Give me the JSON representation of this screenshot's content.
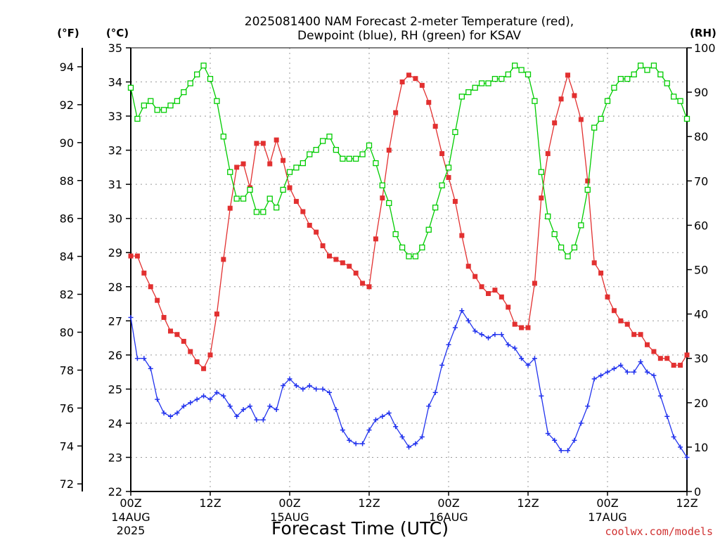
{
  "title_line1": "2025081400 NAM Forecast 2-meter Temperature (red),",
  "title_line2": "Dewpoint (blue), RH (green) for KSAV",
  "unit_left_f": "(°F)",
  "unit_left_c": "(°C)",
  "unit_right_rh": "(RH)",
  "xlabel": "Forecast Time (UTC)",
  "watermark": "coolwx.com/models",
  "colors": {
    "temp": "#e23030",
    "dew": "#2233ee",
    "rh": "#00cc00"
  },
  "chart_data": {
    "type": "line",
    "x_unit": "forecast hour from 2025-08-14 00Z",
    "x_range": [
      0,
      84
    ],
    "x_ticks": [
      {
        "x": 0,
        "label": "00Z",
        "date": "14AUG",
        "year": "2025"
      },
      {
        "x": 12,
        "label": "12Z",
        "date": "",
        "year": ""
      },
      {
        "x": 24,
        "label": "00Z",
        "date": "15AUG",
        "year": ""
      },
      {
        "x": 36,
        "label": "12Z",
        "date": "",
        "year": ""
      },
      {
        "x": 48,
        "label": "00Z",
        "date": "16AUG",
        "year": ""
      },
      {
        "x": 60,
        "label": "12Z",
        "date": "",
        "year": ""
      },
      {
        "x": 72,
        "label": "00Z",
        "date": "17AUG",
        "year": ""
      },
      {
        "x": 84,
        "label": "12Z",
        "date": "",
        "year": ""
      }
    ],
    "celsius_axis": {
      "range": [
        22,
        35
      ],
      "ticks": [
        "22",
        "23",
        "24",
        "25",
        "26",
        "27",
        "28",
        "29",
        "30",
        "31",
        "32",
        "33",
        "34",
        "35"
      ]
    },
    "fahrenheit_axis": {
      "range": [
        71.6,
        95
      ],
      "ticks": [
        "72",
        "74",
        "76",
        "78",
        "80",
        "82",
        "84",
        "86",
        "88",
        "90",
        "92",
        "94"
      ]
    },
    "rh_axis": {
      "range": [
        0,
        100
      ],
      "ticks": [
        "0",
        "10",
        "20",
        "30",
        "40",
        "50",
        "60",
        "70",
        "80",
        "90",
        "100"
      ]
    },
    "grid": true,
    "series": [
      {
        "name": "Temperature",
        "axis": "celsius",
        "points": [
          [
            0,
            28.9
          ],
          [
            1,
            28.9
          ],
          [
            2,
            28.4
          ],
          [
            3,
            28.0
          ],
          [
            4,
            27.6
          ],
          [
            5,
            27.1
          ],
          [
            6,
            26.7
          ],
          [
            7,
            26.6
          ],
          [
            8,
            26.4
          ],
          [
            9,
            26.1
          ],
          [
            10,
            25.8
          ],
          [
            11,
            25.6
          ],
          [
            12,
            26.0
          ],
          [
            13,
            27.2
          ],
          [
            14,
            28.8
          ],
          [
            15,
            30.3
          ],
          [
            16,
            31.5
          ],
          [
            17,
            31.6
          ],
          [
            18,
            30.9
          ],
          [
            19,
            32.2
          ],
          [
            20,
            32.2
          ],
          [
            21,
            31.6
          ],
          [
            22,
            32.3
          ],
          [
            23,
            31.7
          ],
          [
            24,
            30.9
          ],
          [
            25,
            30.5
          ],
          [
            26,
            30.2
          ],
          [
            27,
            29.8
          ],
          [
            28,
            29.6
          ],
          [
            29,
            29.2
          ],
          [
            30,
            28.9
          ],
          [
            31,
            28.8
          ],
          [
            32,
            28.7
          ],
          [
            33,
            28.6
          ],
          [
            34,
            28.4
          ],
          [
            35,
            28.1
          ],
          [
            36,
            28.0
          ],
          [
            37,
            29.4
          ],
          [
            38,
            30.6
          ],
          [
            39,
            32.0
          ],
          [
            40,
            33.1
          ],
          [
            41,
            34.0
          ],
          [
            42,
            34.2
          ],
          [
            43,
            34.1
          ],
          [
            44,
            33.9
          ],
          [
            45,
            33.4
          ],
          [
            46,
            32.7
          ],
          [
            47,
            31.9
          ],
          [
            48,
            31.2
          ],
          [
            49,
            30.5
          ],
          [
            50,
            29.5
          ],
          [
            51,
            28.6
          ],
          [
            52,
            28.3
          ],
          [
            53,
            28.0
          ],
          [
            54,
            27.8
          ],
          [
            55,
            27.9
          ],
          [
            56,
            27.7
          ],
          [
            57,
            27.4
          ],
          [
            58,
            26.9
          ],
          [
            59,
            26.8
          ],
          [
            60,
            26.8
          ],
          [
            61,
            28.1
          ],
          [
            62,
            30.6
          ],
          [
            63,
            31.9
          ],
          [
            64,
            32.8
          ],
          [
            65,
            33.5
          ],
          [
            66,
            34.2
          ],
          [
            67,
            33.6
          ],
          [
            68,
            32.9
          ],
          [
            69,
            31.1
          ],
          [
            70,
            28.7
          ],
          [
            71,
            28.4
          ],
          [
            72,
            27.7
          ],
          [
            73,
            27.3
          ],
          [
            74,
            27.0
          ],
          [
            75,
            26.9
          ],
          [
            76,
            26.6
          ],
          [
            77,
            26.6
          ],
          [
            78,
            26.3
          ],
          [
            79,
            26.1
          ],
          [
            80,
            25.9
          ],
          [
            81,
            25.9
          ],
          [
            82,
            25.7
          ],
          [
            83,
            25.7
          ],
          [
            84,
            26.0
          ]
        ]
      },
      {
        "name": "Dewpoint",
        "axis": "celsius",
        "points": [
          [
            0,
            27.1
          ],
          [
            1,
            25.9
          ],
          [
            2,
            25.9
          ],
          [
            3,
            25.6
          ],
          [
            4,
            24.7
          ],
          [
            5,
            24.3
          ],
          [
            6,
            24.2
          ],
          [
            7,
            24.3
          ],
          [
            8,
            24.5
          ],
          [
            9,
            24.6
          ],
          [
            10,
            24.7
          ],
          [
            11,
            24.8
          ],
          [
            12,
            24.7
          ],
          [
            13,
            24.9
          ],
          [
            14,
            24.8
          ],
          [
            15,
            24.5
          ],
          [
            16,
            24.2
          ],
          [
            17,
            24.4
          ],
          [
            18,
            24.5
          ],
          [
            19,
            24.1
          ],
          [
            20,
            24.1
          ],
          [
            21,
            24.5
          ],
          [
            22,
            24.4
          ],
          [
            23,
            25.1
          ],
          [
            24,
            25.3
          ],
          [
            25,
            25.1
          ],
          [
            26,
            25.0
          ],
          [
            27,
            25.1
          ],
          [
            28,
            25.0
          ],
          [
            29,
            25.0
          ],
          [
            30,
            24.9
          ],
          [
            31,
            24.4
          ],
          [
            32,
            23.8
          ],
          [
            33,
            23.5
          ],
          [
            34,
            23.4
          ],
          [
            35,
            23.4
          ],
          [
            36,
            23.8
          ],
          [
            37,
            24.1
          ],
          [
            38,
            24.2
          ],
          [
            39,
            24.3
          ],
          [
            40,
            23.9
          ],
          [
            41,
            23.6
          ],
          [
            42,
            23.3
          ],
          [
            43,
            23.4
          ],
          [
            44,
            23.6
          ],
          [
            45,
            24.5
          ],
          [
            46,
            24.9
          ],
          [
            47,
            25.7
          ],
          [
            48,
            26.3
          ],
          [
            49,
            26.8
          ],
          [
            50,
            27.3
          ],
          [
            51,
            27.0
          ],
          [
            52,
            26.7
          ],
          [
            53,
            26.6
          ],
          [
            54,
            26.5
          ],
          [
            55,
            26.6
          ],
          [
            56,
            26.6
          ],
          [
            57,
            26.3
          ],
          [
            58,
            26.2
          ],
          [
            59,
            25.9
          ],
          [
            60,
            25.7
          ],
          [
            61,
            25.9
          ],
          [
            62,
            24.8
          ],
          [
            63,
            23.7
          ],
          [
            64,
            23.5
          ],
          [
            65,
            23.2
          ],
          [
            66,
            23.2
          ],
          [
            67,
            23.5
          ],
          [
            68,
            24.0
          ],
          [
            69,
            24.5
          ],
          [
            70,
            25.3
          ],
          [
            71,
            25.4
          ],
          [
            72,
            25.5
          ],
          [
            73,
            25.6
          ],
          [
            74,
            25.7
          ],
          [
            75,
            25.5
          ],
          [
            76,
            25.5
          ],
          [
            77,
            25.8
          ],
          [
            78,
            25.5
          ],
          [
            79,
            25.4
          ],
          [
            80,
            24.8
          ],
          [
            81,
            24.2
          ],
          [
            82,
            23.6
          ],
          [
            83,
            23.3
          ],
          [
            84,
            23.0
          ]
        ]
      },
      {
        "name": "RH",
        "axis": "rh",
        "points": [
          [
            0,
            91
          ],
          [
            1,
            84
          ],
          [
            2,
            87
          ],
          [
            3,
            88
          ],
          [
            4,
            86
          ],
          [
            5,
            86
          ],
          [
            6,
            87
          ],
          [
            7,
            88
          ],
          [
            8,
            90
          ],
          [
            9,
            92
          ],
          [
            10,
            94
          ],
          [
            11,
            96
          ],
          [
            12,
            93
          ],
          [
            13,
            88
          ],
          [
            14,
            80
          ],
          [
            15,
            72
          ],
          [
            16,
            66
          ],
          [
            17,
            66
          ],
          [
            18,
            68
          ],
          [
            19,
            63
          ],
          [
            20,
            63
          ],
          [
            21,
            66
          ],
          [
            22,
            64
          ],
          [
            23,
            68
          ],
          [
            24,
            72
          ],
          [
            25,
            73
          ],
          [
            26,
            74
          ],
          [
            27,
            76
          ],
          [
            28,
            77
          ],
          [
            29,
            79
          ],
          [
            30,
            80
          ],
          [
            31,
            77
          ],
          [
            32,
            75
          ],
          [
            33,
            75
          ],
          [
            34,
            75
          ],
          [
            35,
            76
          ],
          [
            36,
            78
          ],
          [
            37,
            74
          ],
          [
            38,
            69
          ],
          [
            39,
            65
          ],
          [
            40,
            58
          ],
          [
            41,
            55
          ],
          [
            42,
            53
          ],
          [
            43,
            53
          ],
          [
            44,
            55
          ],
          [
            45,
            59
          ],
          [
            46,
            64
          ],
          [
            47,
            69
          ],
          [
            48,
            73
          ],
          [
            49,
            81
          ],
          [
            50,
            89
          ],
          [
            51,
            90
          ],
          [
            52,
            91
          ],
          [
            53,
            92
          ],
          [
            54,
            92
          ],
          [
            55,
            93
          ],
          [
            56,
            93
          ],
          [
            57,
            94
          ],
          [
            58,
            96
          ],
          [
            59,
            95
          ],
          [
            60,
            94
          ],
          [
            61,
            88
          ],
          [
            62,
            72
          ],
          [
            63,
            62
          ],
          [
            64,
            58
          ],
          [
            65,
            55
          ],
          [
            66,
            53
          ],
          [
            67,
            55
          ],
          [
            68,
            60
          ],
          [
            69,
            68
          ],
          [
            70,
            82
          ],
          [
            71,
            84
          ],
          [
            72,
            88
          ],
          [
            73,
            91
          ],
          [
            74,
            93
          ],
          [
            75,
            93
          ],
          [
            76,
            94
          ],
          [
            77,
            96
          ],
          [
            78,
            95
          ],
          [
            79,
            96
          ],
          [
            80,
            94
          ],
          [
            81,
            92
          ],
          [
            82,
            89
          ],
          [
            83,
            88
          ],
          [
            84,
            84
          ]
        ]
      }
    ]
  }
}
